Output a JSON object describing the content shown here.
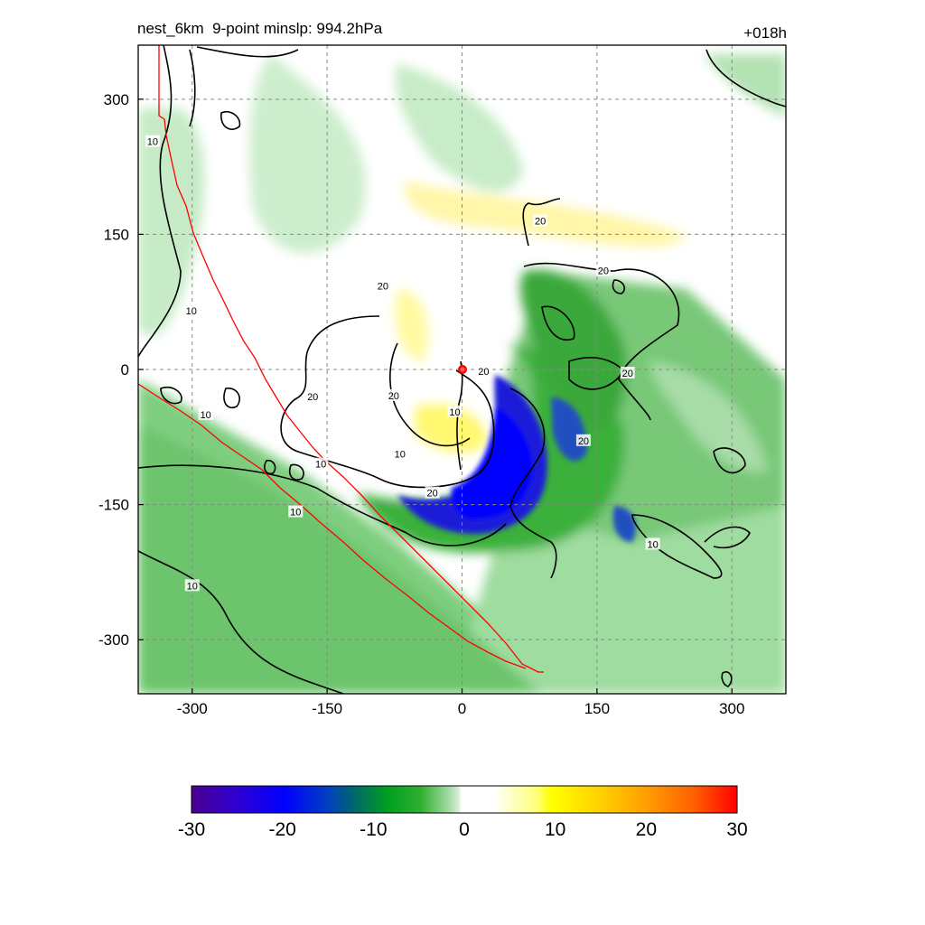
{
  "title_left": "nest_6km  9-point minslp: 994.2hPa",
  "title_right": "+018h",
  "chart_data": {
    "type": "heatmap",
    "title": "nest_6km  9-point minslp: 994.2hPa",
    "forecast_hour": "+018h",
    "min_slp": "994.2hPa",
    "xlim": [
      -360,
      360
    ],
    "ylim": [
      -360,
      360
    ],
    "x_ticks": [
      -300,
      -150,
      0,
      150,
      300
    ],
    "y_ticks": [
      300,
      150,
      0,
      -150,
      -300
    ],
    "x_tick_labels": [
      "-300",
      "-150",
      "0",
      "150",
      "300"
    ],
    "y_tick_labels": [
      "300",
      "150",
      "0",
      "-150",
      "-300"
    ],
    "grid": true,
    "center_marker": {
      "x": 0,
      "y": 0,
      "color": "#ff0000"
    },
    "contour_labels": [
      "10",
      "20"
    ],
    "colorbar": {
      "min": -30,
      "max": 30,
      "ticks": [
        -30,
        -20,
        -10,
        0,
        10,
        20,
        30
      ],
      "tick_labels": [
        "-30",
        "-20",
        "-10",
        "0",
        "10",
        "20",
        "30"
      ],
      "position": "bottom"
    },
    "contour_label_points": [
      {
        "x": -344,
        "y": 253,
        "label": "10"
      },
      {
        "x": -301,
        "y": 65,
        "label": "10"
      },
      {
        "x": -285,
        "y": -50,
        "label": "10"
      },
      {
        "x": -157,
        "y": -105,
        "label": "10"
      },
      {
        "x": -185,
        "y": -158,
        "label": "10"
      },
      {
        "x": -300,
        "y": -240,
        "label": "10"
      },
      {
        "x": -69,
        "y": -94,
        "label": "10"
      },
      {
        "x": -8,
        "y": -47,
        "label": "10"
      },
      {
        "x": 212,
        "y": -194,
        "label": "10"
      },
      {
        "x": 87,
        "y": 165,
        "label": "20"
      },
      {
        "x": 157,
        "y": 110,
        "label": "20"
      },
      {
        "x": -88,
        "y": 93,
        "label": "20"
      },
      {
        "x": -166,
        "y": -30,
        "label": "20"
      },
      {
        "x": -76,
        "y": -29,
        "label": "20"
      },
      {
        "x": 24,
        "y": -2,
        "label": "20"
      },
      {
        "x": -33,
        "y": -137,
        "label": "20"
      },
      {
        "x": 135,
        "y": -79,
        "label": "20"
      },
      {
        "x": 184,
        "y": -4,
        "label": "20"
      }
    ]
  }
}
